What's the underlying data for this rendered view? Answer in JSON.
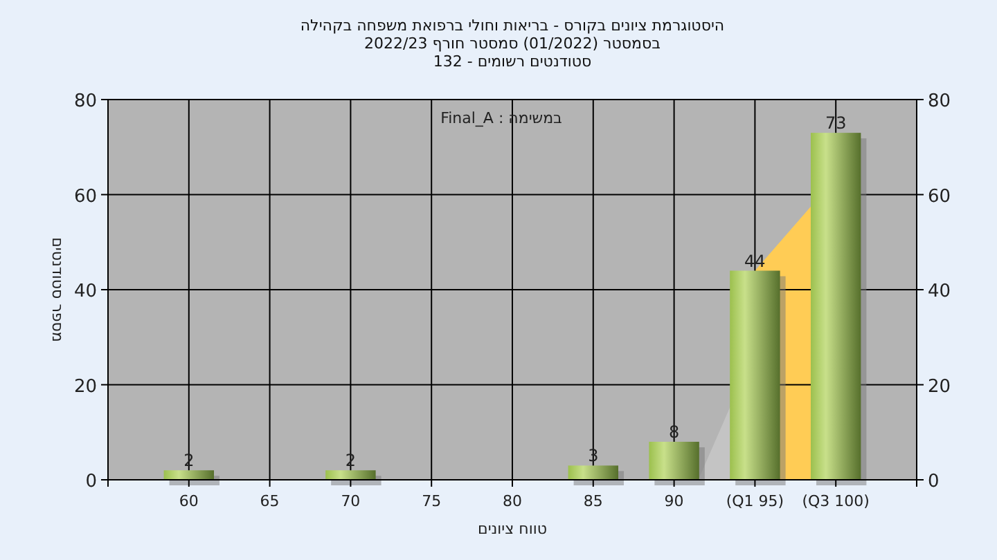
{
  "chart_data": {
    "type": "bar",
    "title": "היסטוגרמת ציונים בקורס - בריאות וחולי ברפואת משפחה בקהילה",
    "subtitle": "בסמסטר  (01/2022)  סמסטר חורף 2022/23\nסטודנטים רשומים - 132",
    "xlabel": "טווח ציונים",
    "ylabel": "מספר סטודנטים",
    "annotations": [
      "במשימה : Final_A"
    ],
    "categories": [
      "60",
      "65",
      "70",
      "75",
      "80",
      "85",
      "90",
      "(Q1 95)",
      "(Q3 100)"
    ],
    "series": [
      {
        "color": "#9cc04e",
        "values": [
          2,
          0,
          2,
          0,
          0,
          3,
          8,
          44,
          73
        ],
        "value_labels": [
          "2",
          null,
          "2",
          null,
          null,
          "3",
          "8",
          "44",
          "73"
        ]
      }
    ],
    "ylim": [
      0,
      80
    ],
    "yticks": [
      0,
      20,
      40,
      60,
      80
    ],
    "y2lim": [
      0,
      80
    ],
    "y2ticks": [
      0,
      20,
      40,
      60,
      80
    ],
    "bands": [
      {
        "axis": "x",
        "from": "(Q1 95)",
        "to": "(Q3 100)",
        "color": "#ffcc55"
      }
    ],
    "grid": true
  }
}
